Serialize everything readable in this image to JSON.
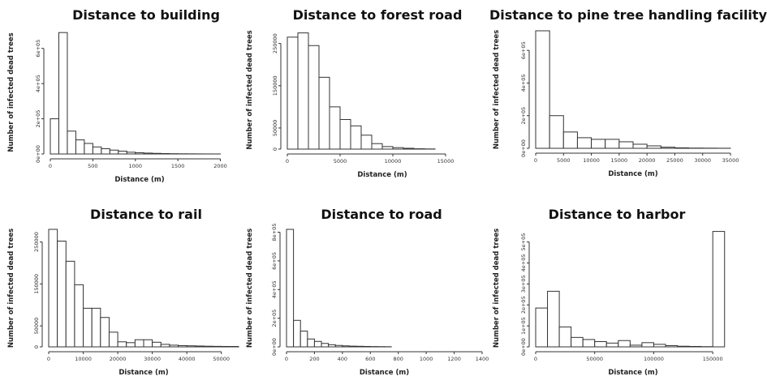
{
  "chart_data": [
    {
      "type": "histogram",
      "title": "Distance to building",
      "xlabel": "Distance (m)",
      "ylabel": "Number of infected dead trees",
      "bin_width": 100,
      "x_start": 0,
      "xlim": [
        0,
        2100
      ],
      "ylim": [
        0,
        700000
      ],
      "x_ticks": [
        0,
        500,
        1000,
        1500,
        2000
      ],
      "x_tick_labels": [
        "0",
        "500",
        "1000",
        "1500",
        "2000"
      ],
      "y_ticks": [
        0,
        200000,
        400000,
        600000
      ],
      "y_tick_labels": [
        "0e+00",
        "2e+05",
        "4e+05",
        "6e+05"
      ],
      "values": [
        200000,
        690000,
        130000,
        80000,
        60000,
        40000,
        30000,
        22000,
        16000,
        10000,
        7000,
        5000,
        3500,
        2500,
        1500,
        1000,
        800,
        500,
        300,
        200
      ]
    },
    {
      "type": "histogram",
      "title": "Distance to forest road",
      "xlabel": "Distance (m)",
      "ylabel": "Number of infected dead trees",
      "bin_width": 1000,
      "x_start": 0,
      "xlim": [
        0,
        18000
      ],
      "ylim": [
        0,
        280000
      ],
      "x_ticks": [
        0,
        5000,
        10000,
        15000
      ],
      "x_tick_labels": [
        "0",
        "5000",
        "10000",
        "15000"
      ],
      "y_ticks": [
        0,
        50000,
        150000,
        250000
      ],
      "y_tick_labels": [
        "0",
        "50000",
        "150000",
        "250000"
      ],
      "values": [
        265000,
        275000,
        245000,
        170000,
        100000,
        70000,
        55000,
        33000,
        13000,
        6000,
        3500,
        2000,
        800,
        400
      ]
    },
    {
      "type": "histogram",
      "title": "Distance to pine tree handling facility",
      "xlabel": "Distance (m)",
      "ylabel": "Number of infected dead trees",
      "bin_width": 2500,
      "x_start": 0,
      "xlim": [
        0,
        35000
      ],
      "ylim": [
        0,
        720000
      ],
      "x_ticks": [
        0,
        5000,
        10000,
        15000,
        20000,
        25000,
        30000,
        35000
      ],
      "x_tick_labels": [
        "0",
        "5000",
        "10000",
        "15000",
        "20000",
        "25000",
        "30000",
        "35000"
      ],
      "y_ticks": [
        0,
        200000,
        400000,
        600000
      ],
      "y_tick_labels": [
        "0e+00",
        "2e+05",
        "4e+05",
        "6e+05"
      ],
      "values": [
        720000,
        200000,
        100000,
        65000,
        55000,
        55000,
        40000,
        25000,
        15000,
        7000,
        3000,
        1500,
        1000,
        500
      ]
    },
    {
      "type": "histogram",
      "title": "Distance to rail",
      "xlabel": "Distance (m)",
      "ylabel": "Number of infected dead trees",
      "bin_width": 2500,
      "x_start": 0,
      "xlim": [
        0,
        55000
      ],
      "ylim": [
        0,
        280000
      ],
      "x_ticks": [
        0,
        10000,
        20000,
        30000,
        40000,
        50000
      ],
      "x_tick_labels": [
        "0",
        "10000",
        "20000",
        "30000",
        "40000",
        "50000"
      ],
      "y_ticks": [
        0,
        50000,
        150000,
        250000
      ],
      "y_tick_labels": [
        "0",
        "50000",
        "150000",
        "250000"
      ],
      "values": [
        280000,
        252000,
        204000,
        148000,
        92000,
        92000,
        70000,
        35000,
        12000,
        10000,
        17000,
        17000,
        11000,
        6000,
        4000,
        3000,
        2500,
        2000,
        1500,
        1200,
        1000,
        900
      ]
    },
    {
      "type": "histogram",
      "title": "Distance to road",
      "xlabel": "Distance (m)",
      "ylabel": "Number of infected dead trees",
      "bin_width": 50,
      "x_start": 0,
      "xlim": [
        0,
        1400
      ],
      "ylim": [
        0,
        820000
      ],
      "x_ticks": [
        0,
        200,
        400,
        600,
        800,
        1000,
        1200,
        1400
      ],
      "x_tick_labels": [
        "0",
        "200",
        "400",
        "600",
        "800",
        "1000",
        "1200",
        "1400"
      ],
      "y_ticks": [
        0,
        200000,
        400000,
        600000,
        800000
      ],
      "y_tick_labels": [
        "0e+00",
        "2e+05",
        "4e+05",
        "6e+05",
        "8e+05"
      ],
      "values": [
        820000,
        185000,
        110000,
        55000,
        38000,
        24000,
        15000,
        10000,
        7000,
        5000,
        4000,
        3000,
        2000,
        1500,
        1000
      ]
    },
    {
      "type": "histogram",
      "title": "Distance to harbor",
      "xlabel": "Distance (m)",
      "ylabel": "Number of infected dead trees",
      "bin_width": 10000,
      "x_start": 0,
      "xlim": [
        0,
        165000
      ],
      "ylim": [
        0,
        560000
      ],
      "x_ticks": [
        0,
        50000,
        100000,
        150000
      ],
      "x_tick_labels": [
        "0",
        "50000",
        "100000",
        "150000"
      ],
      "y_ticks": [
        0,
        100000,
        200000,
        300000,
        400000,
        500000
      ],
      "y_tick_labels": [
        "0e+00",
        "1e+05",
        "2e+05",
        "3e+05",
        "4e+05",
        "5e+05"
      ],
      "values": [
        185000,
        265000,
        95000,
        45000,
        35000,
        25000,
        18000,
        30000,
        8000,
        20000,
        12000,
        6000,
        3000,
        2000,
        1000,
        550000
      ]
    }
  ]
}
